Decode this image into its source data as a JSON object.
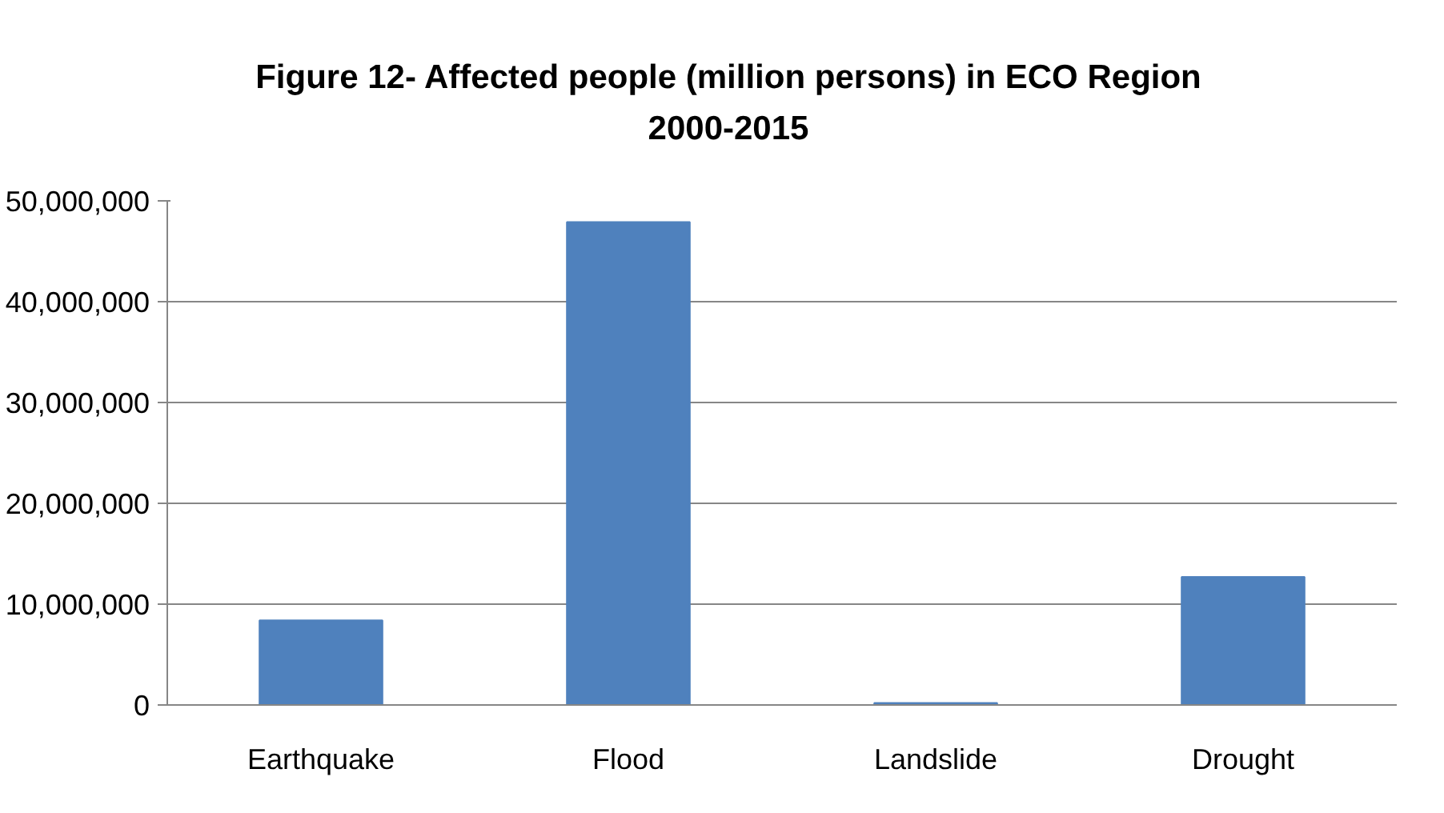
{
  "chart_data": {
    "type": "bar",
    "title": "Figure 12- Affected people (million persons) in ECO Region\n2000-2015",
    "categories": [
      "Earthquake",
      "Flood",
      "Landslide",
      "Drought"
    ],
    "values": [
      8400000,
      47900000,
      200000,
      12700000
    ],
    "color": "#4f81bd",
    "ylim": [
      0,
      50000000
    ],
    "yticks": [
      {
        "value": 0,
        "label": "0"
      },
      {
        "value": 10000000,
        "label": "10,000,000"
      },
      {
        "value": 20000000,
        "label": "20,000,000"
      },
      {
        "value": 30000000,
        "label": "30,000,000"
      },
      {
        "value": 40000000,
        "label": "40,000,000"
      },
      {
        "value": 50000000,
        "label": "50,000,000"
      }
    ],
    "grid": "y"
  }
}
